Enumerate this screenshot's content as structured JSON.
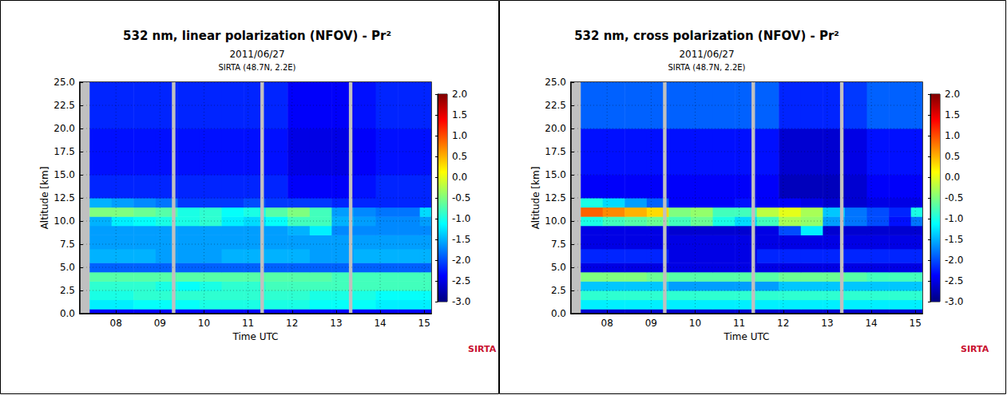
{
  "chart_data": [
    {
      "type": "heatmap",
      "title": "532 nm, linear polarization (NFOV) - Pr²",
      "subtitle": [
        "2011/06/27",
        "SIRTA (48.7N, 2.2E)"
      ],
      "annotation": "SIRTA",
      "x_label": "Time UTC",
      "y_label": "Altitude [km]",
      "xlim": [
        7.18,
        15.16
      ],
      "ylim": [
        0,
        25
      ],
      "xticks": [
        {
          "value": 8,
          "label": "08"
        },
        {
          "value": 9,
          "label": "09"
        },
        10,
        11,
        12,
        13,
        14,
        15
      ],
      "yticks": [
        {
          "value": 0,
          "label": "0.0"
        },
        2.5,
        {
          "value": 5,
          "label": "5.0"
        },
        7.5,
        {
          "value": 10,
          "label": "10.0"
        },
        12.5,
        {
          "value": 15,
          "label": "15.0"
        },
        17.5,
        {
          "value": 20,
          "label": "20.0"
        },
        22.5,
        {
          "value": 25,
          "label": "25.0"
        }
      ],
      "grid": true,
      "x_edges": [
        7.4,
        7.9,
        8.4,
        8.9,
        9.4,
        9.9,
        10.4,
        10.9,
        11.4,
        11.9,
        12.4,
        12.9,
        13.4,
        13.9,
        14.4,
        14.9,
        15.16
      ],
      "y_edges": [
        0,
        0.5,
        1.5,
        2.5,
        3.5,
        4.5,
        5.5,
        7,
        8.5,
        9.5,
        10.5,
        11.5,
        12.5,
        15,
        20,
        25
      ],
      "cells": [
        [
          -2.4,
          -2.4,
          -2.4,
          -2.4,
          -2.4,
          -2.4,
          -2.4,
          -2.4,
          -2.4,
          -2.4,
          -2.4,
          -2.4,
          -2.4,
          -2.4,
          -2.4,
          -2.4
        ],
        [
          -1.2,
          -1.2,
          -1.1,
          -1.1,
          -1.1,
          -1.0,
          -1.0,
          -1.0,
          -1.0,
          -1.0,
          -1.1,
          -1.1,
          -1.1,
          -1.2,
          -1.2,
          -1.2
        ],
        [
          -1.0,
          -1.0,
          -0.9,
          -0.9,
          -0.9,
          -0.9,
          -0.9,
          -0.9,
          -0.9,
          -0.9,
          -1.0,
          -1.0,
          -1.0,
          -1.1,
          -1.1,
          -1.1
        ],
        [
          -0.9,
          -0.9,
          -0.9,
          -1.0,
          -1.1,
          -1.0,
          -0.9,
          -0.9,
          -0.8,
          -0.8,
          -0.8,
          -0.8,
          -0.8,
          -0.8,
          -0.8,
          -0.8
        ],
        [
          -0.7,
          -0.7,
          -0.7,
          -0.7,
          -0.7,
          -0.7,
          -0.7,
          -0.7,
          -0.7,
          -0.7,
          -0.7,
          -0.8,
          -0.8,
          -0.8,
          -0.8,
          -0.8
        ],
        [
          -1.9,
          -1.9,
          -1.9,
          -1.9,
          -1.9,
          -1.9,
          -1.9,
          -1.9,
          -1.9,
          -1.9,
          -1.9,
          -1.9,
          -1.9,
          -1.9,
          -1.9,
          -1.9
        ],
        [
          -1.5,
          -1.5,
          -1.5,
          -1.6,
          -1.6,
          -1.6,
          -1.5,
          -1.5,
          -1.5,
          -1.5,
          -1.6,
          -1.6,
          -1.5,
          -1.5,
          -1.5,
          -1.5
        ],
        [
          -1.6,
          -1.6,
          -1.6,
          -1.6,
          -1.6,
          -1.6,
          -1.6,
          -1.6,
          -1.6,
          -1.6,
          -1.6,
          -1.6,
          -1.6,
          -1.6,
          -1.6,
          -1.6
        ],
        [
          -1.6,
          -1.6,
          -1.6,
          -1.6,
          -1.6,
          -1.6,
          -1.6,
          -1.6,
          -1.6,
          -1.5,
          -1.2,
          -1.7,
          -1.7,
          -1.7,
          -1.7,
          -1.7
        ],
        [
          -1.5,
          -1.2,
          -1.1,
          -1.0,
          -1.0,
          -0.9,
          -1.2,
          -1.3,
          -1.1,
          -0.8,
          -0.8,
          -1.5,
          -1.6,
          -1.7,
          -1.7,
          -1.6
        ],
        [
          -0.5,
          -0.5,
          -0.6,
          -0.7,
          -1.0,
          -0.9,
          -1.1,
          -1.0,
          -0.7,
          -0.5,
          -0.8,
          -1.6,
          -1.7,
          -1.8,
          -1.8,
          -1.3
        ],
        [
          -1.5,
          -1.6,
          -1.7,
          -1.8,
          -2.1,
          -2.1,
          -2.1,
          -2.0,
          -2.1,
          -2.1,
          -2.1,
          -2.2,
          -2.2,
          -2.2,
          -2.2,
          -2.2
        ],
        [
          -2.2,
          -2.2,
          -2.2,
          -2.2,
          -2.2,
          -2.2,
          -2.2,
          -2.2,
          -2.2,
          -2.4,
          -2.4,
          -2.4,
          -2.3,
          -2.2,
          -2.2,
          -2.2
        ],
        [
          -2.3,
          -2.3,
          -2.3,
          -2.3,
          -2.3,
          -2.3,
          -2.3,
          -2.3,
          -2.3,
          -2.5,
          -2.5,
          -2.5,
          -2.4,
          -2.3,
          -2.3,
          -2.3
        ],
        [
          -2.2,
          -2.2,
          -2.2,
          -2.2,
          -2.2,
          -2.2,
          -2.2,
          -2.2,
          -2.2,
          -2.4,
          -2.4,
          -2.4,
          -2.3,
          -2.2,
          -2.2,
          -2.2
        ]
      ],
      "no_data": [
        [
          7.18,
          7.4
        ],
        [
          9.27,
          9.35
        ],
        [
          11.28,
          11.36
        ],
        [
          13.29,
          13.37
        ]
      ],
      "colorbar": {
        "range": [
          -3,
          2
        ],
        "ticks": [
          {
            "value": -3,
            "label": "-3.0"
          },
          -2.5,
          {
            "value": -2,
            "label": "-2.0"
          },
          -1.5,
          {
            "value": -1,
            "label": "-1.0"
          },
          -0.5,
          {
            "value": 0,
            "label": "0.0"
          },
          0.5,
          {
            "value": 1,
            "label": "1.0"
          },
          1.5,
          {
            "value": 2,
            "label": "2.0"
          }
        ]
      }
    },
    {
      "type": "heatmap",
      "title": "532 nm, cross polarization (NFOV) - Pr²",
      "subtitle": [
        "2011/06/27",
        "SIRTA (48.7N, 2.2E)"
      ],
      "annotation": "SIRTA",
      "x_label": "Time UTC",
      "y_label": "Altitude [km]",
      "xlim": [
        7.18,
        15.16
      ],
      "ylim": [
        0,
        25
      ],
      "xticks": [
        {
          "value": 8,
          "label": "08"
        },
        {
          "value": 9,
          "label": "09"
        },
        10,
        11,
        12,
        13,
        14,
        15
      ],
      "yticks": [
        {
          "value": 0,
          "label": "0.0"
        },
        2.5,
        {
          "value": 5,
          "label": "5.0"
        },
        7.5,
        {
          "value": 10,
          "label": "10.0"
        },
        12.5,
        {
          "value": 15,
          "label": "15.0"
        },
        17.5,
        {
          "value": 20,
          "label": "20.0"
        },
        22.5,
        {
          "value": 25,
          "label": "25.0"
        }
      ],
      "grid": true,
      "x_edges": [
        7.4,
        7.9,
        8.4,
        8.9,
        9.4,
        9.9,
        10.4,
        10.9,
        11.4,
        11.9,
        12.4,
        12.9,
        13.4,
        13.9,
        14.4,
        14.9,
        15.16
      ],
      "y_edges": [
        0,
        0.5,
        1.5,
        2.5,
        3.5,
        4.5,
        5.5,
        7,
        8.5,
        9.5,
        10.5,
        11.5,
        12.5,
        15,
        20,
        25
      ],
      "cells": [
        [
          -2.6,
          -2.6,
          -2.6,
          -2.6,
          -2.6,
          -2.6,
          -2.6,
          -2.6,
          -2.6,
          -2.6,
          -2.6,
          -2.6,
          -2.6,
          -2.6,
          -2.6,
          -2.6
        ],
        [
          -1.2,
          -1.2,
          -1.2,
          -1.2,
          -1.2,
          -1.2,
          -1.2,
          -1.2,
          -1.2,
          -1.2,
          -1.2,
          -1.2,
          -1.2,
          -1.2,
          -1.2,
          -1.2
        ],
        [
          -0.9,
          -0.9,
          -0.9,
          -0.9,
          -0.9,
          -0.9,
          -0.9,
          -0.9,
          -0.9,
          -0.9,
          -0.9,
          -0.9,
          -0.9,
          -0.9,
          -0.9,
          -0.9
        ],
        [
          -1.4,
          -1.4,
          -1.4,
          -1.4,
          -1.6,
          -1.6,
          -1.6,
          -1.6,
          -1.6,
          -1.4,
          -1.4,
          -1.4,
          -1.4,
          -1.4,
          -1.4,
          -1.4
        ],
        [
          -0.5,
          -0.5,
          -0.5,
          -0.6,
          -0.7,
          -0.7,
          -0.7,
          -0.7,
          -0.7,
          -0.6,
          -0.6,
          -0.6,
          -0.7,
          -0.8,
          -0.8,
          -0.8
        ],
        [
          -2.5,
          -2.5,
          -2.5,
          -2.5,
          -2.5,
          -2.5,
          -2.5,
          -2.5,
          -2.5,
          -2.5,
          -2.5,
          -2.5,
          -2.5,
          -2.5,
          -2.5,
          -2.5
        ],
        [
          -2.2,
          -2.2,
          -2.2,
          -2.2,
          -2.5,
          -2.5,
          -2.5,
          -2.5,
          -2.2,
          -2.2,
          -2.2,
          -2.2,
          -2.2,
          -2.2,
          -2.2,
          -2.2
        ],
        [
          -2.5,
          -2.5,
          -2.5,
          -2.5,
          -2.5,
          -2.5,
          -2.5,
          -2.5,
          -2.5,
          -2.5,
          -2.5,
          -2.5,
          -2.5,
          -2.5,
          -2.5,
          -2.5
        ],
        [
          -2.5,
          -2.5,
          -2.5,
          -2.5,
          -2.6,
          -2.6,
          -2.6,
          -2.6,
          -2.5,
          -2.0,
          -1.2,
          -2.6,
          -2.6,
          -2.6,
          -2.6,
          -2.6
        ],
        [
          -1.0,
          -0.8,
          -0.7,
          -0.6,
          -0.8,
          -0.6,
          -1.0,
          -1.3,
          -0.8,
          -0.3,
          -0.4,
          -1.6,
          -1.8,
          -2.0,
          -2.3,
          -1.8
        ],
        [
          0.9,
          0.7,
          0.5,
          0.3,
          -0.5,
          -0.4,
          -0.8,
          -0.8,
          -0.2,
          0.0,
          -0.3,
          -1.4,
          -1.8,
          -2.0,
          -2.2,
          -1.0
        ],
        [
          -1.0,
          -1.3,
          -1.6,
          -1.9,
          -2.4,
          -2.4,
          -2.4,
          -2.3,
          -2.4,
          -2.4,
          -2.5,
          -2.6,
          -2.6,
          -2.5,
          -2.5,
          -2.5
        ],
        [
          -2.4,
          -2.4,
          -2.4,
          -2.4,
          -2.4,
          -2.4,
          -2.4,
          -2.4,
          -2.4,
          -2.7,
          -2.7,
          -2.7,
          -2.6,
          -2.4,
          -2.4,
          -2.4
        ],
        [
          -2.3,
          -2.3,
          -2.3,
          -2.3,
          -2.3,
          -2.3,
          -2.3,
          -2.3,
          -2.3,
          -2.6,
          -2.6,
          -2.6,
          -2.5,
          -2.3,
          -2.3,
          -2.3
        ],
        [
          -1.9,
          -1.9,
          -1.9,
          -1.9,
          -1.9,
          -1.9,
          -1.9,
          -1.9,
          -1.9,
          -2.2,
          -2.2,
          -2.2,
          -2.1,
          -1.9,
          -1.9,
          -1.9
        ]
      ],
      "no_data": [
        [
          7.18,
          7.4
        ],
        [
          9.27,
          9.35
        ],
        [
          11.28,
          11.36
        ],
        [
          13.29,
          13.37
        ]
      ],
      "colorbar": {
        "range": [
          -3,
          2
        ],
        "ticks": [
          {
            "value": -3,
            "label": "-3.0"
          },
          -2.5,
          {
            "value": -2,
            "label": "-2.0"
          },
          -1.5,
          {
            "value": -1,
            "label": "-1.0"
          },
          -0.5,
          {
            "value": 0,
            "label": "0.0"
          },
          0.5,
          {
            "value": 1,
            "label": "1.0"
          },
          1.5,
          {
            "value": 2,
            "label": "2.0"
          }
        ]
      }
    }
  ]
}
